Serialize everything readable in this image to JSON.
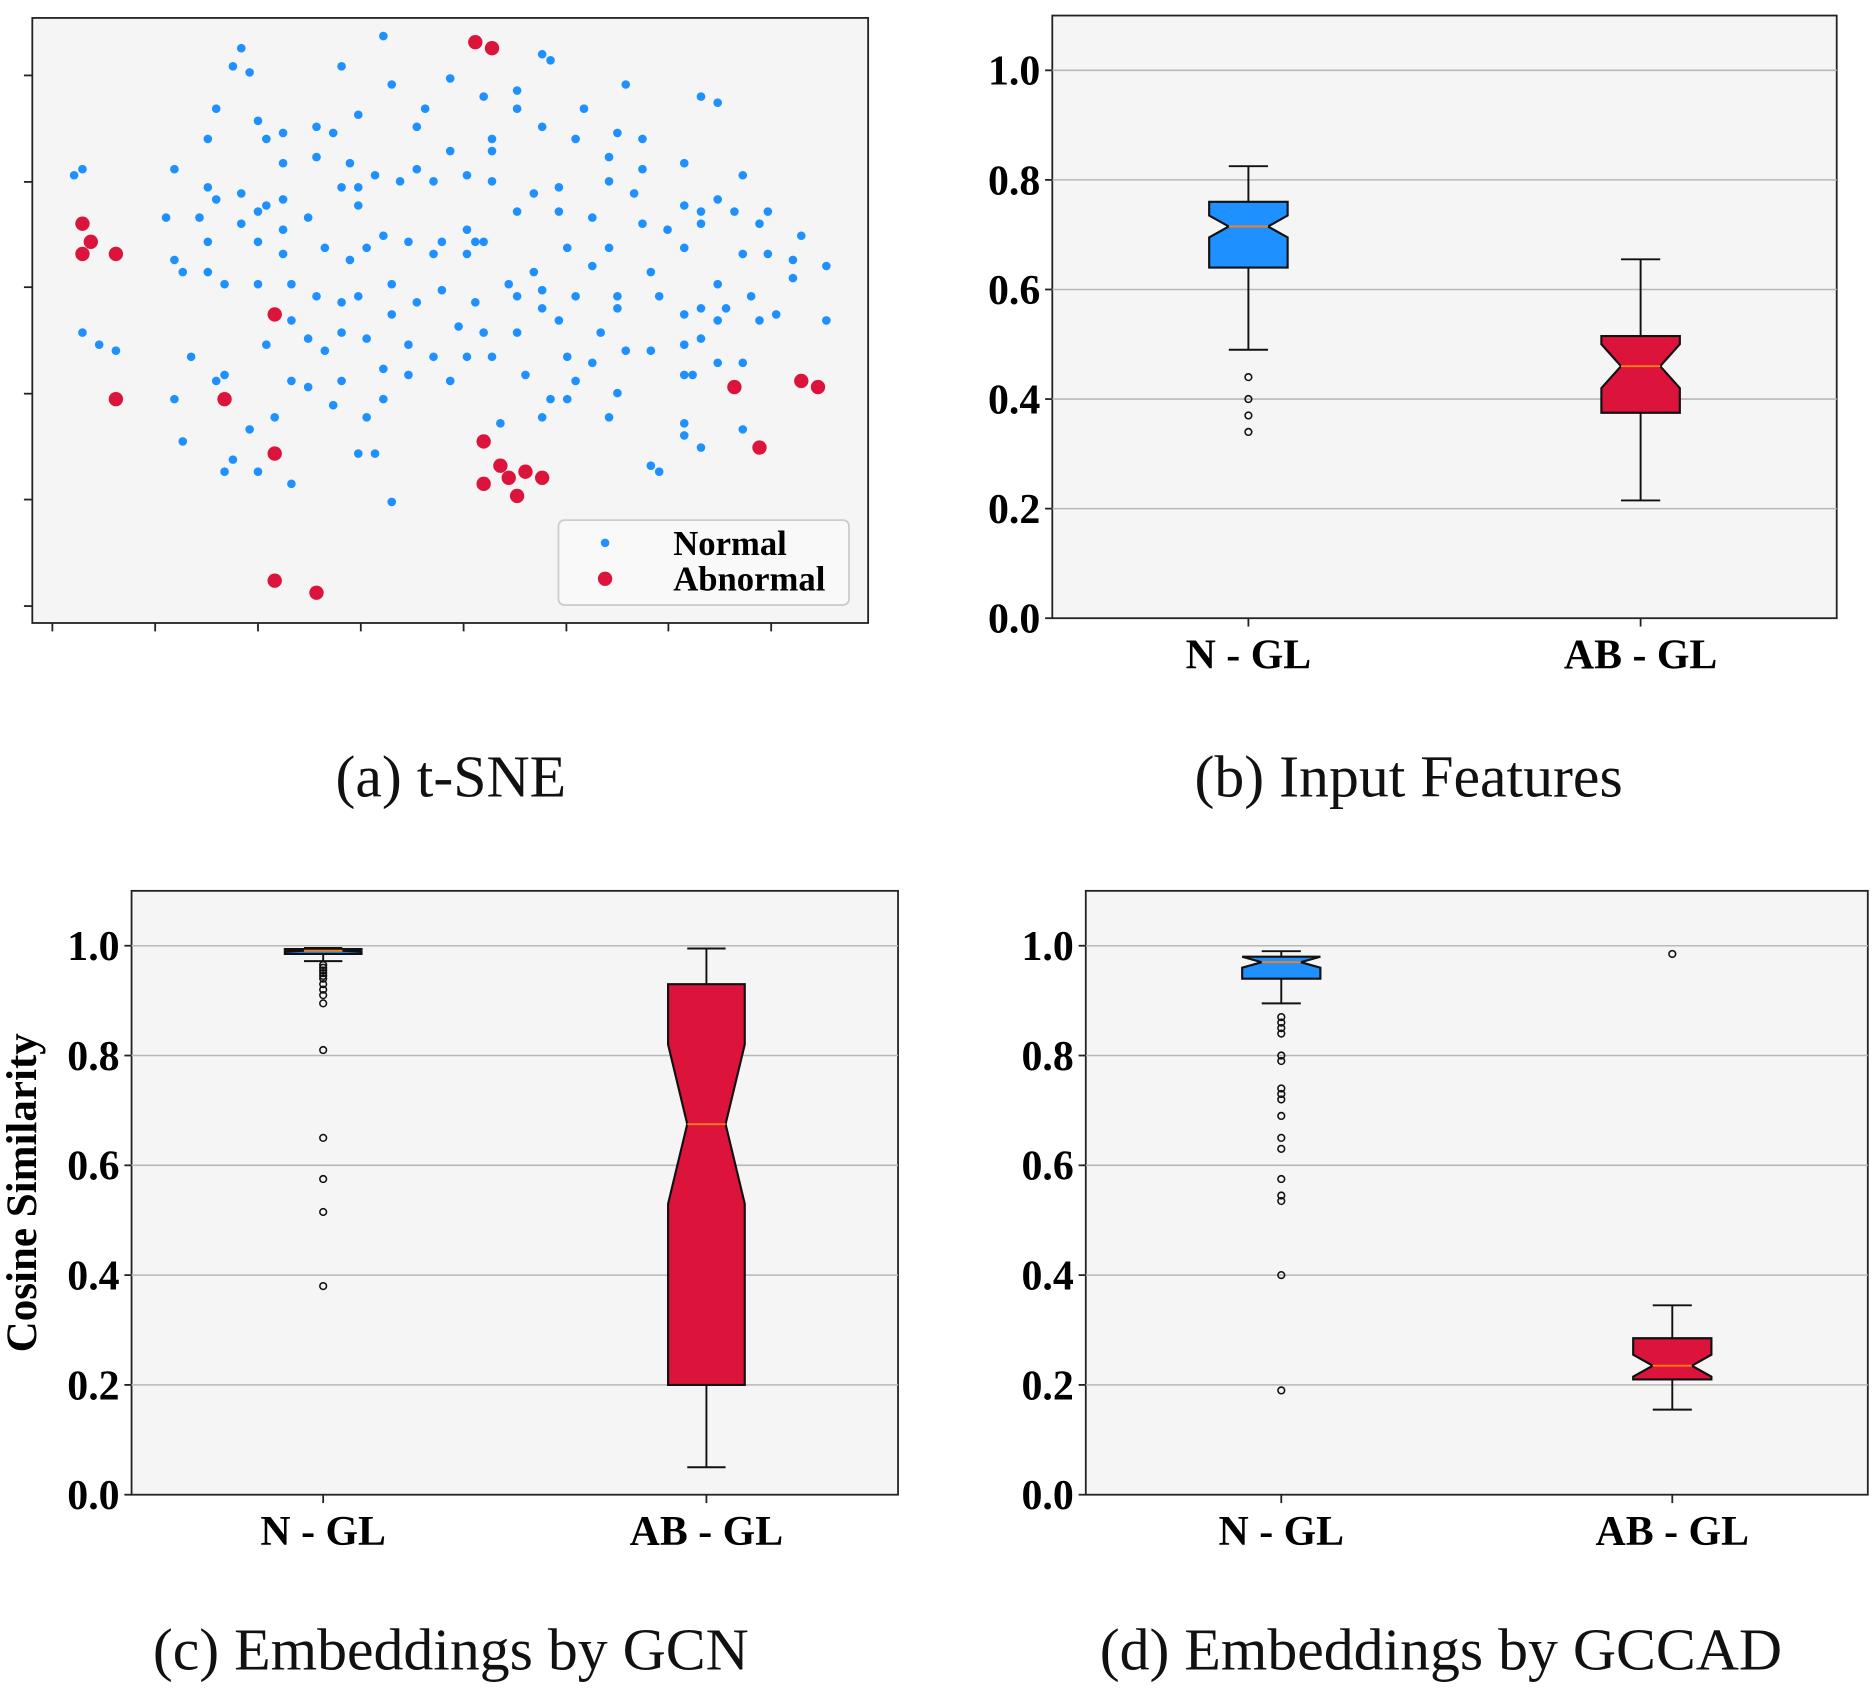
{
  "colors": {
    "normal": "#1e90ff",
    "abnormal": "#dc143c",
    "median": "#ff7f0e",
    "axes_bg": "#f5f5f5",
    "grid": "#b8b8b8"
  },
  "chart_data": [
    {
      "type": "scatter",
      "caption": "(a)  t-SNE",
      "xlim": [
        0,
        100
      ],
      "ylim": [
        0,
        100
      ],
      "x_ticks": [
        2.4,
        14.7,
        27,
        39.3,
        51.6,
        63.9,
        76.1,
        88.4
      ],
      "y_ticks": [
        2.8,
        20.4,
        37.9,
        55.5,
        72.9,
        90.5
      ],
      "tick_labels_shown": false,
      "grid": false,
      "legend": {
        "placement": "lower-right",
        "entries": [
          "Normal",
          "Abnormal"
        ]
      },
      "series": [
        {
          "name": "Normal",
          "color": "#1e90ff",
          "points": [
            [
              42,
              97
            ],
            [
              25,
              95
            ],
            [
              24,
              92
            ],
            [
              26,
              91
            ],
            [
              37,
              92
            ],
            [
              61,
              94
            ],
            [
              62,
              93
            ],
            [
              43,
              89
            ],
            [
              50,
              90
            ],
            [
              71,
              89
            ],
            [
              80,
              87
            ],
            [
              82,
              86
            ],
            [
              22,
              85
            ],
            [
              27,
              83
            ],
            [
              30,
              81
            ],
            [
              34,
              82
            ],
            [
              36,
              81
            ],
            [
              39,
              84
            ],
            [
              46,
              82
            ],
            [
              47,
              85
            ],
            [
              54,
              87
            ],
            [
              58,
              88
            ],
            [
              58,
              85
            ],
            [
              55,
              80
            ],
            [
              61,
              82
            ],
            [
              66,
              85
            ],
            [
              70,
              81
            ],
            [
              73,
              80
            ],
            [
              78,
              76
            ],
            [
              28,
              80
            ],
            [
              21,
              80
            ],
            [
              30,
              76
            ],
            [
              38,
              76
            ],
            [
              46,
              75
            ],
            [
              50,
              78
            ],
            [
              55,
              78
            ],
            [
              65,
              80
            ],
            [
              69,
              77
            ],
            [
              73,
              75
            ],
            [
              5,
              74
            ],
            [
              6,
              75
            ],
            [
              17,
              75
            ],
            [
              21,
              72
            ],
            [
              25,
              71
            ],
            [
              28,
              69
            ],
            [
              34,
              77
            ],
            [
              37,
              72
            ],
            [
              39,
              72
            ],
            [
              41,
              74
            ],
            [
              44,
              73
            ],
            [
              48,
              73
            ],
            [
              52,
              74
            ],
            [
              55,
              73
            ],
            [
              60,
              71
            ],
            [
              63,
              72
            ],
            [
              69,
              73
            ],
            [
              72,
              71
            ],
            [
              78,
              69
            ],
            [
              80,
              68
            ],
            [
              82,
              70
            ],
            [
              85,
              74
            ],
            [
              16,
              67
            ],
            [
              20,
              67
            ],
            [
              22,
              70
            ],
            [
              25,
              66
            ],
            [
              27,
              68
            ],
            [
              30,
              70
            ],
            [
              30,
              65
            ],
            [
              33,
              67
            ],
            [
              39,
              69
            ],
            [
              42,
              64
            ],
            [
              45,
              63
            ],
            [
              49,
              63
            ],
            [
              52,
              65
            ],
            [
              54,
              63
            ],
            [
              58,
              68
            ],
            [
              63,
              68
            ],
            [
              67,
              67
            ],
            [
              69,
              62
            ],
            [
              73,
              66
            ],
            [
              76,
              65
            ],
            [
              78,
              62
            ],
            [
              80,
              66
            ],
            [
              84,
              68
            ],
            [
              87,
              66
            ],
            [
              88,
              68
            ],
            [
              92,
              64
            ],
            [
              95,
              59
            ],
            [
              17,
              60
            ],
            [
              21,
              63
            ],
            [
              27,
              63
            ],
            [
              30,
              61
            ],
            [
              35,
              62
            ],
            [
              38,
              60
            ],
            [
              40,
              62
            ],
            [
              43,
              56
            ],
            [
              48,
              61
            ],
            [
              52,
              61
            ],
            [
              53,
              63
            ],
            [
              57,
              56
            ],
            [
              60,
              58
            ],
            [
              64,
              62
            ],
            [
              67,
              59
            ],
            [
              70,
              54
            ],
            [
              74,
              58
            ],
            [
              78,
              51
            ],
            [
              82,
              56
            ],
            [
              85,
              61
            ],
            [
              88,
              61
            ],
            [
              91,
              60
            ],
            [
              18,
              58
            ],
            [
              21,
              58
            ],
            [
              23,
              56
            ],
            [
              27,
              56
            ],
            [
              31,
              56
            ],
            [
              34,
              54
            ],
            [
              37,
              53
            ],
            [
              39,
              54
            ],
            [
              43,
              51
            ],
            [
              46,
              53
            ],
            [
              49,
              55
            ],
            [
              53,
              53
            ],
            [
              58,
              54
            ],
            [
              61,
              55
            ],
            [
              63,
              50
            ],
            [
              65,
              54
            ],
            [
              70,
              52
            ],
            [
              75,
              54
            ],
            [
              80,
              52
            ],
            [
              83,
              52
            ],
            [
              86,
              54
            ],
            [
              89,
              51
            ],
            [
              91,
              57
            ],
            [
              95,
              50
            ],
            [
              6,
              48
            ],
            [
              8,
              46
            ],
            [
              10,
              45
            ],
            [
              19,
              44
            ],
            [
              28,
              46
            ],
            [
              31,
              50
            ],
            [
              33,
              47
            ],
            [
              35,
              45
            ],
            [
              37,
              48
            ],
            [
              40,
              47
            ],
            [
              45,
              46
            ],
            [
              48,
              44
            ],
            [
              51,
              49
            ],
            [
              54,
              48
            ],
            [
              58,
              48
            ],
            [
              61,
              52
            ],
            [
              64,
              44
            ],
            [
              68,
              48
            ],
            [
              71,
              45
            ],
            [
              78,
              46
            ],
            [
              80,
              47
            ],
            [
              82,
              50
            ],
            [
              85,
              43
            ],
            [
              87,
              50
            ],
            [
              17,
              37
            ],
            [
              18,
              30
            ],
            [
              22,
              40
            ],
            [
              23,
              41
            ],
            [
              31,
              40
            ],
            [
              33,
              39
            ],
            [
              37,
              40
            ],
            [
              42,
              42
            ],
            [
              45,
              41
            ],
            [
              50,
              40
            ],
            [
              52,
              44
            ],
            [
              55,
              44
            ],
            [
              59,
              41
            ],
            [
              62,
              37
            ],
            [
              65,
              40
            ],
            [
              67,
              43
            ],
            [
              70,
              38
            ],
            [
              74,
              45
            ],
            [
              78,
              41
            ],
            [
              79,
              41
            ],
            [
              82,
              43
            ],
            [
              26,
              32
            ],
            [
              29,
              34
            ],
            [
              36,
              36
            ],
            [
              40,
              34
            ],
            [
              42,
              37
            ],
            [
              56,
              33
            ],
            [
              61,
              34
            ],
            [
              64,
              37
            ],
            [
              69,
              34
            ],
            [
              78,
              33
            ],
            [
              78,
              31
            ],
            [
              85,
              32
            ],
            [
              80,
              29
            ],
            [
              24,
              27
            ],
            [
              23,
              25
            ],
            [
              27,
              25
            ],
            [
              31,
              23
            ],
            [
              39,
              28
            ],
            [
              41,
              28
            ],
            [
              43,
              20
            ],
            [
              74,
              26
            ],
            [
              75,
              25
            ]
          ]
        },
        {
          "name": "Abnormal",
          "color": "#dc143c",
          "points": [
            [
              53,
              96
            ],
            [
              55,
              95
            ],
            [
              6,
              66
            ],
            [
              7,
              63
            ],
            [
              6,
              61
            ],
            [
              10,
              61
            ],
            [
              29,
              51
            ],
            [
              10,
              37
            ],
            [
              23,
              37
            ],
            [
              29,
              28
            ],
            [
              54,
              30
            ],
            [
              56,
              26
            ],
            [
              54,
              23
            ],
            [
              57,
              24
            ],
            [
              59,
              25
            ],
            [
              58,
              21
            ],
            [
              61,
              24
            ],
            [
              84,
              39
            ],
            [
              87,
              29
            ],
            [
              92,
              40
            ],
            [
              94,
              39
            ],
            [
              29,
              7
            ],
            [
              34,
              5
            ]
          ]
        }
      ]
    },
    {
      "type": "box",
      "caption": "(b)  Input Features",
      "ylabel": "",
      "ylim": [
        0,
        1.1
      ],
      "y_ticks": [
        "0.0",
        "0.2",
        "0.4",
        "0.6",
        "0.8",
        "1.0"
      ],
      "categories": [
        "N - GL",
        "AB - GL"
      ],
      "grid": "horizontal",
      "boxes": [
        {
          "category": "N - GL",
          "color": "#1e90ff",
          "whisker_low": 0.49,
          "q1": 0.64,
          "median": 0.715,
          "q3": 0.76,
          "whisker_high": 0.825,
          "notch": [
            0.695,
            0.735
          ],
          "outliers": [
            0.44,
            0.4,
            0.37,
            0.34
          ]
        },
        {
          "category": "AB - GL",
          "color": "#dc143c",
          "whisker_low": 0.215,
          "q1": 0.375,
          "median": 0.46,
          "q3": 0.515,
          "whisker_high": 0.655,
          "notch": [
            0.42,
            0.5
          ],
          "outliers": []
        }
      ]
    },
    {
      "type": "box",
      "caption": "(c)  Embeddings by GCN",
      "ylabel": "Cosine Similarity",
      "ylim": [
        0,
        1.1
      ],
      "y_ticks": [
        "0.0",
        "0.2",
        "0.4",
        "0.6",
        "0.8",
        "1.0"
      ],
      "categories": [
        "N - GL",
        "AB - GL"
      ],
      "grid": "horizontal",
      "boxes": [
        {
          "category": "N - GL",
          "color": "#1e90ff",
          "whisker_low": 0.972,
          "q1": 0.985,
          "median": 0.991,
          "q3": 0.994,
          "whisker_high": 0.996,
          "notch": [
            0.989,
            0.993
          ],
          "outliers": [
            0.965,
            0.96,
            0.955,
            0.95,
            0.945,
            0.94,
            0.93,
            0.92,
            0.91,
            0.895,
            0.81,
            0.65,
            0.575,
            0.515,
            0.38
          ]
        },
        {
          "category": "AB - GL",
          "color": "#dc143c",
          "whisker_low": 0.05,
          "q1": 0.2,
          "median": 0.675,
          "q3": 0.93,
          "whisker_high": 0.995,
          "notch": [
            0.53,
            0.82
          ],
          "outliers": []
        }
      ]
    },
    {
      "type": "box",
      "caption": "(d)  Embeddings by GCCAD",
      "ylabel": "",
      "ylim": [
        0,
        1.1
      ],
      "y_ticks": [
        "0.0",
        "0.2",
        "0.4",
        "0.6",
        "0.8",
        "1.0"
      ],
      "categories": [
        "N - GL",
        "AB - GL"
      ],
      "grid": "horizontal",
      "boxes": [
        {
          "category": "N - GL",
          "color": "#1e90ff",
          "whisker_low": 0.895,
          "q1": 0.94,
          "median": 0.97,
          "q3": 0.98,
          "whisker_high": 0.99,
          "notch": [
            0.96,
            0.98
          ],
          "outliers": [
            0.87,
            0.86,
            0.85,
            0.84,
            0.8,
            0.79,
            0.74,
            0.73,
            0.72,
            0.69,
            0.65,
            0.63,
            0.575,
            0.545,
            0.535,
            0.4,
            0.19
          ]
        },
        {
          "category": "AB - GL",
          "color": "#dc143c",
          "whisker_low": 0.155,
          "q1": 0.21,
          "median": 0.235,
          "q3": 0.285,
          "whisker_high": 0.345,
          "notch": [
            0.215,
            0.255
          ],
          "outliers": [
            0.985
          ]
        }
      ]
    }
  ]
}
